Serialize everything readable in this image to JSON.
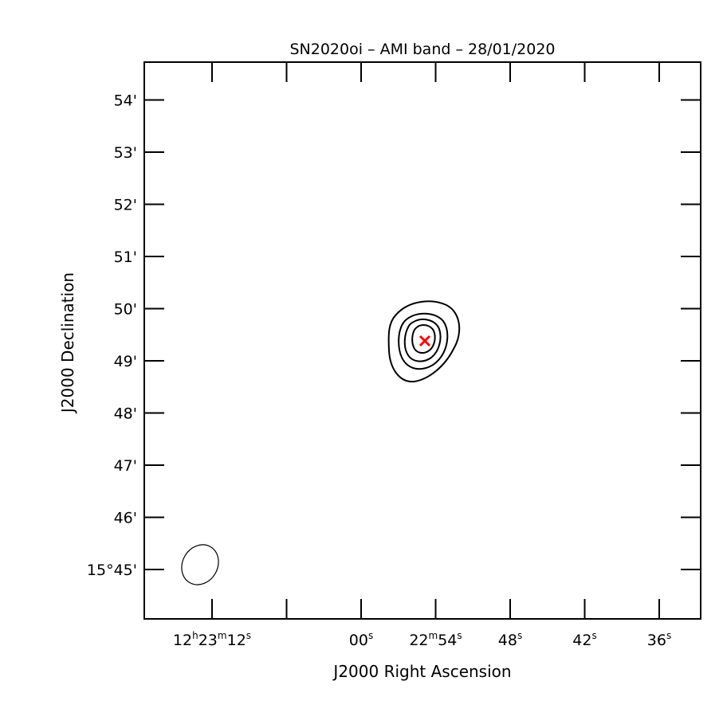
{
  "chart_data": {
    "type": "contour",
    "title": "SN2020oi – AMI band – 28/01/2020",
    "xlabel": "J2000 Right Ascension",
    "ylabel": "J2000 Declination",
    "xlim_ra_seconds": [
      14.6,
      33.0
    ],
    "ylim_dec_arcmin": [
      44.0,
      54.7
    ],
    "x_ticks": [
      {
        "value": 12,
        "label": "12h23m12s"
      },
      {
        "value": 6,
        "label": ""
      },
      {
        "value": 0,
        "label": "00s"
      },
      {
        "value": -6,
        "label": "22m54s"
      },
      {
        "value": -12,
        "label": "48s"
      },
      {
        "value": -18,
        "label": "42s"
      },
      {
        "value": -24,
        "label": "36s"
      }
    ],
    "y_ticks": [
      {
        "value": 54,
        "label": "54'"
      },
      {
        "value": 53,
        "label": "53'"
      },
      {
        "value": 52,
        "label": "52'"
      },
      {
        "value": 51,
        "label": "51'"
      },
      {
        "value": 50,
        "label": "50'"
      },
      {
        "value": 49,
        "label": "49'"
      },
      {
        "value": 48,
        "label": "48'"
      },
      {
        "value": 47,
        "label": "47'"
      },
      {
        "value": 46,
        "label": "46'"
      },
      {
        "value": 45,
        "label": "15°45'"
      }
    ],
    "source": {
      "ra_offset_s": -5.5,
      "dec_arcmin": 49.35,
      "marker": "x",
      "marker_color": "#ff0000"
    },
    "contour_levels": 4,
    "beam": {
      "ra_offset_s": 11.2,
      "dec_arcmin": 45.1,
      "label": ""
    },
    "grid": false
  }
}
